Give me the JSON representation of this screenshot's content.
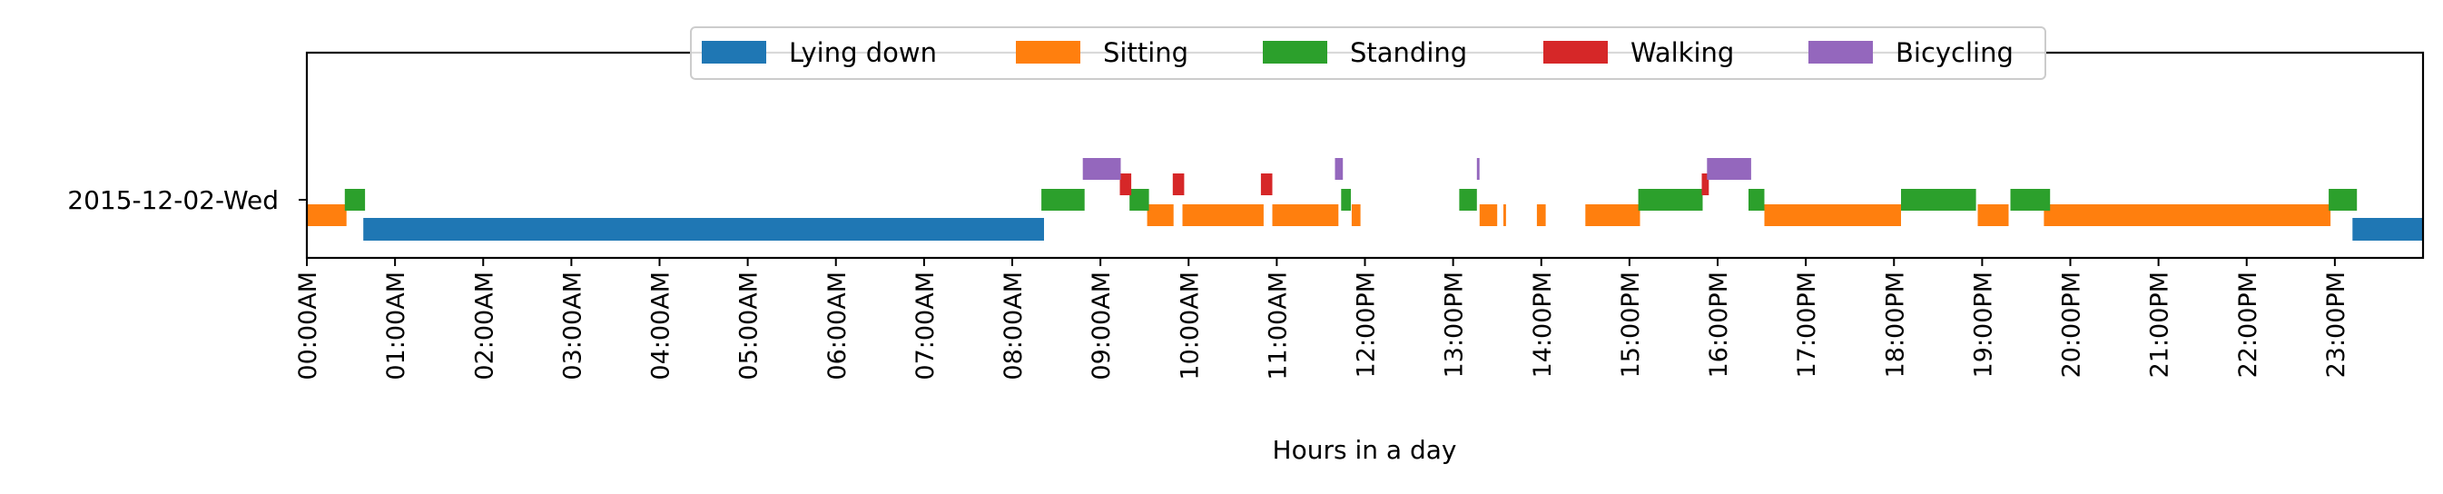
{
  "chart_data": {
    "type": "timeline",
    "row_label": "2015-12-02-Wed",
    "xlabel": "Hours in a day",
    "xlim": [
      0,
      24
    ],
    "x_ticks": [
      "00:00AM",
      "01:00AM",
      "02:00AM",
      "03:00AM",
      "04:00AM",
      "05:00AM",
      "06:00AM",
      "07:00AM",
      "08:00AM",
      "09:00AM",
      "10:00AM",
      "11:00AM",
      "12:00PM",
      "13:00PM",
      "14:00PM",
      "15:00PM",
      "16:00PM",
      "17:00PM",
      "18:00PM",
      "19:00PM",
      "20:00PM",
      "21:00PM",
      "22:00PM",
      "23:00PM"
    ],
    "legend_position": "top-center",
    "series": [
      {
        "name": "Lying down",
        "color": "#1f77b4",
        "segments": [
          [
            0.64,
            8.36
          ],
          [
            23.2,
            24.0
          ]
        ]
      },
      {
        "name": "Sitting",
        "color": "#ff7f0e",
        "segments": [
          [
            0.0,
            0.45
          ],
          [
            9.53,
            9.83
          ],
          [
            9.93,
            10.85
          ],
          [
            10.95,
            11.7
          ],
          [
            11.85,
            11.95
          ],
          [
            13.3,
            13.5
          ],
          [
            13.57,
            13.6
          ],
          [
            13.95,
            14.05
          ],
          [
            14.5,
            15.12
          ],
          [
            16.53,
            18.08
          ],
          [
            18.95,
            19.3
          ],
          [
            19.7,
            22.95
          ]
        ]
      },
      {
        "name": "Standing",
        "color": "#2ca02c",
        "segments": [
          [
            0.43,
            0.66
          ],
          [
            8.33,
            8.82
          ],
          [
            9.33,
            9.55
          ],
          [
            11.73,
            11.84
          ],
          [
            13.07,
            13.27
          ],
          [
            15.1,
            15.83
          ],
          [
            16.35,
            16.53
          ],
          [
            18.08,
            18.93
          ],
          [
            19.32,
            19.77
          ],
          [
            22.93,
            23.25
          ]
        ]
      },
      {
        "name": "Walking",
        "color": "#d62728",
        "segments": [
          [
            9.22,
            9.35
          ],
          [
            9.82,
            9.95
          ],
          [
            10.82,
            10.95
          ],
          [
            15.82,
            15.9
          ]
        ]
      },
      {
        "name": "Bicycling",
        "color": "#9467bd",
        "segments": [
          [
            8.8,
            9.23
          ],
          [
            11.66,
            11.75
          ],
          [
            13.27,
            13.3
          ],
          [
            15.88,
            16.38
          ]
        ]
      }
    ]
  }
}
